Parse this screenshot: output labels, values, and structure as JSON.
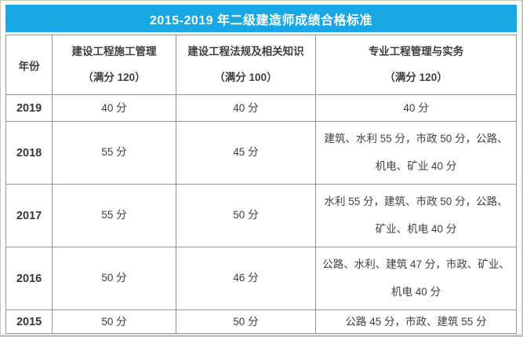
{
  "title": "2015-2019 年二级建造师成绩合格标准",
  "colors": {
    "title_bg": "#17a7e4",
    "title_text": "#ffffff",
    "table_border": "#939393",
    "body_text": "#3f3f3f"
  },
  "table": {
    "header": {
      "year": "年份",
      "col2_line1": "建设工程施工管理",
      "col2_line2": "（满分 120）",
      "col3_line1": "建设工程法规及相关知识",
      "col3_line2": "（满分 100）",
      "col4_line1": "专业工程管理与实务",
      "col4_line2": "（满分 120）"
    },
    "rows": [
      {
        "year": "2019",
        "mgmt": "40 分",
        "law": "40 分",
        "practice": "40 分"
      },
      {
        "year": "2018",
        "mgmt": "55 分",
        "law": "45 分",
        "practice": "建筑、水利 55 分，市政 50 分，公路、机电、矿业 40 分"
      },
      {
        "year": "2017",
        "mgmt": "55 分",
        "law": "50 分",
        "practice": "水利 55 分，建筑、市政 50 分，公路、矿业、机电 40 分"
      },
      {
        "year": "2016",
        "mgmt": "50 分",
        "law": "46 分",
        "practice": "公路、水利、建筑 47 分，市政、矿业、机电 40 分"
      },
      {
        "year": "2015",
        "mgmt": "50 分",
        "law": "50 分",
        "practice": "公路 45 分，市政、建筑 55 分"
      }
    ]
  },
  "chart_data": {
    "type": "table",
    "title": "2015-2019 年二级建造师成绩合格标准",
    "columns": [
      "年份",
      "建设工程施工管理（满分 120）",
      "建设工程法规及相关知识（满分 100）",
      "专业工程管理与实务（满分 120）"
    ],
    "rows": [
      [
        "2019",
        "40 分",
        "40 分",
        "40 分"
      ],
      [
        "2018",
        "55 分",
        "45 分",
        "建筑、水利 55 分，市政 50 分，公路、机电、矿业 40 分"
      ],
      [
        "2017",
        "55 分",
        "50 分",
        "水利 55 分，建筑、市政 50 分，公路、矿业、机电 40 分"
      ],
      [
        "2016",
        "50 分",
        "46 分",
        "公路、水利、建筑 47 分，市政、矿业、机电 40 分"
      ],
      [
        "2015",
        "50 分",
        "50 分",
        "公路 45 分，市政、建筑 55 分"
      ]
    ]
  }
}
